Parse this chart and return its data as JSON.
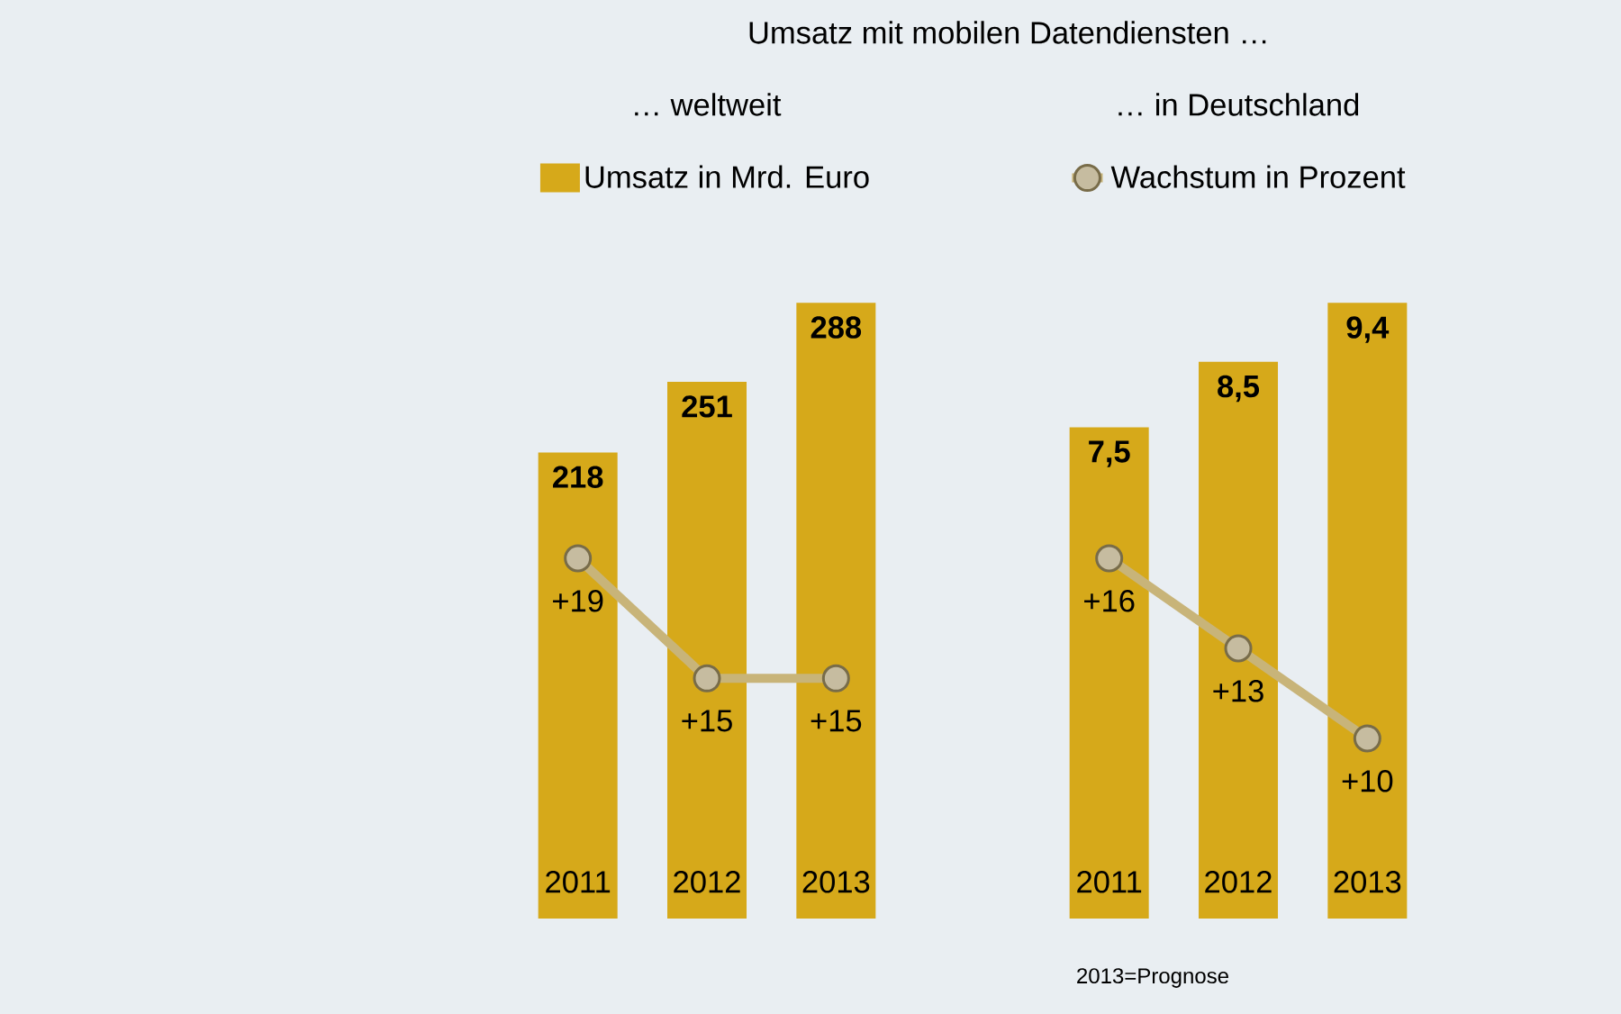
{
  "chart_data": [
    {
      "type": "bar",
      "title": "Umsatz mit mobilen Datendiensten …",
      "subtitle": "… weltweit",
      "categories": [
        "2011",
        "2012",
        "2013"
      ],
      "data_labels": true,
      "legend": "top",
      "marker": "circle",
      "series": [
        {
          "name": "Umsatz in Mrd. Euro",
          "color": "#d6a91a",
          "values": [
            218,
            251,
            288
          ]
        },
        {
          "type": "line",
          "axis": "y2",
          "color": "#c8b479",
          "values": [
            19,
            15,
            15
          ],
          "value_labels": [
            "+19",
            "+15",
            "+15"
          ]
        }
      ]
    },
    {
      "type": "bar",
      "subtitle": "… in Deutschland",
      "categories": [
        "2011",
        "2012",
        "2013"
      ],
      "legend": "top",
      "marker": "circle",
      "annotations": [
        "2013=Prognose"
      ],
      "series": [
        {
          "color": "#d6a91a",
          "values": [
            7.5,
            8.5,
            9.4
          ],
          "value_labels": [
            "7,5",
            "8,5",
            "9,4"
          ]
        },
        {
          "name": "Wachstum in Prozent",
          "type": "line",
          "axis": "y2",
          "color": "#c8b479",
          "values": [
            16,
            13,
            10
          ],
          "value_labels": [
            "+16",
            "+13",
            "+10"
          ]
        }
      ]
    }
  ]
}
